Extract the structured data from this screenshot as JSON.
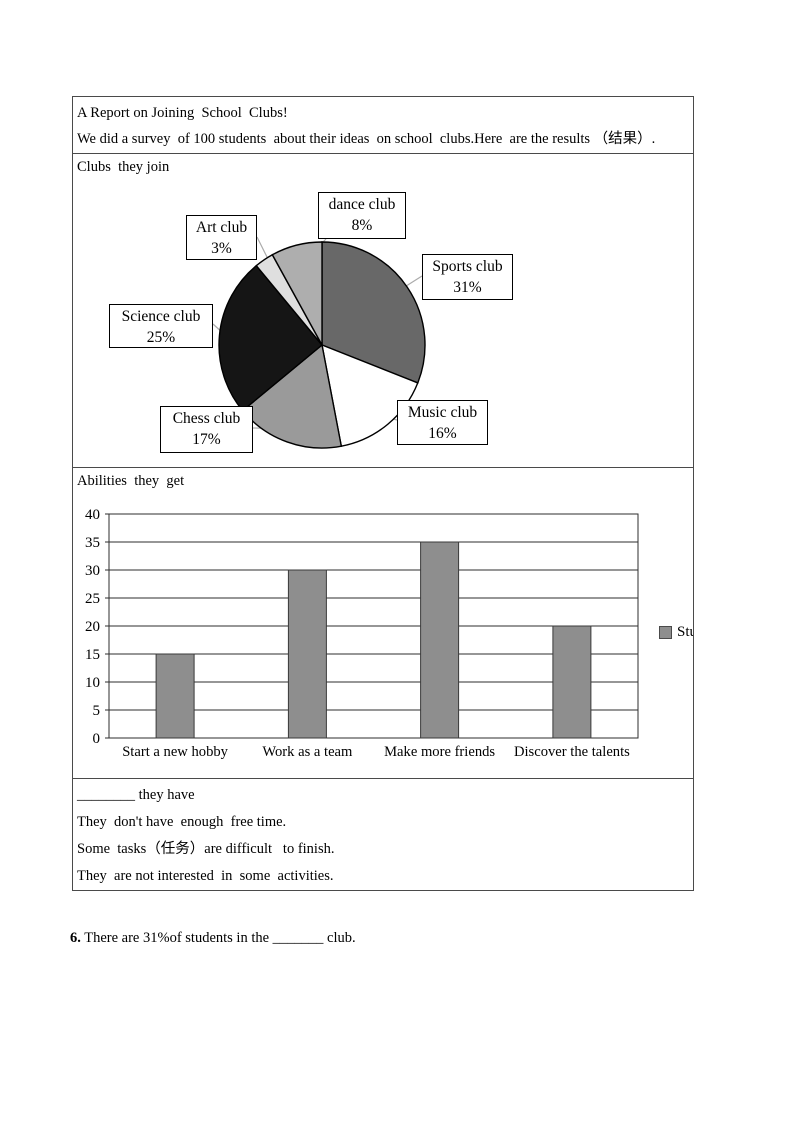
{
  "report": {
    "title": "A Report on Joining  School  Clubs!",
    "intro": "We did a survey  of 100 students  about their ideas  on school  clubs.Here  are the results （结果）.",
    "clubs_section_label": "Clubs  they join",
    "abilities_section_label": "Abilities  they  get",
    "problems": {
      "heading": "________ they have",
      "lines": [
        "They  don't have  enough  free time.",
        "Some  tasks（任务）are difficult   to finish.",
        "They  are not interested  in  some  activities."
      ]
    }
  },
  "question": {
    "number": "6.",
    "text": " There are 31%of students in the _______ club."
  },
  "chart_data": [
    {
      "type": "pie",
      "title": "Clubs they join",
      "unit": "%",
      "direction": "clockwise",
      "start": "12-oclock",
      "slices": [
        {
          "label": "Sports club",
          "value": 31,
          "color": "#686868"
        },
        {
          "label": "Music club",
          "value": 16,
          "color": "#ffffff"
        },
        {
          "label": "Chess club",
          "value": 17,
          "color": "#9a9a9a"
        },
        {
          "label": "Science club",
          "value": 25,
          "color": "#151515"
        },
        {
          "label": "Art club",
          "value": 3,
          "color": "#dfdfdf"
        },
        {
          "label": "dance club",
          "value": 8,
          "color": "#aeaeae"
        }
      ]
    },
    {
      "type": "bar",
      "title": "Abilities they get",
      "categories": [
        "Start a new hobby",
        "Work as a team",
        "Make more friends",
        "Discover the talents"
      ],
      "values": [
        15,
        30,
        35,
        20
      ],
      "ylim": [
        0,
        40
      ],
      "ytick_step": 5,
      "grid": true,
      "bar_color": "#8e8e8e",
      "legend": {
        "label_visible": "Stu",
        "marker_color": "#8e8e8e",
        "position": "right-clipped"
      }
    }
  ]
}
